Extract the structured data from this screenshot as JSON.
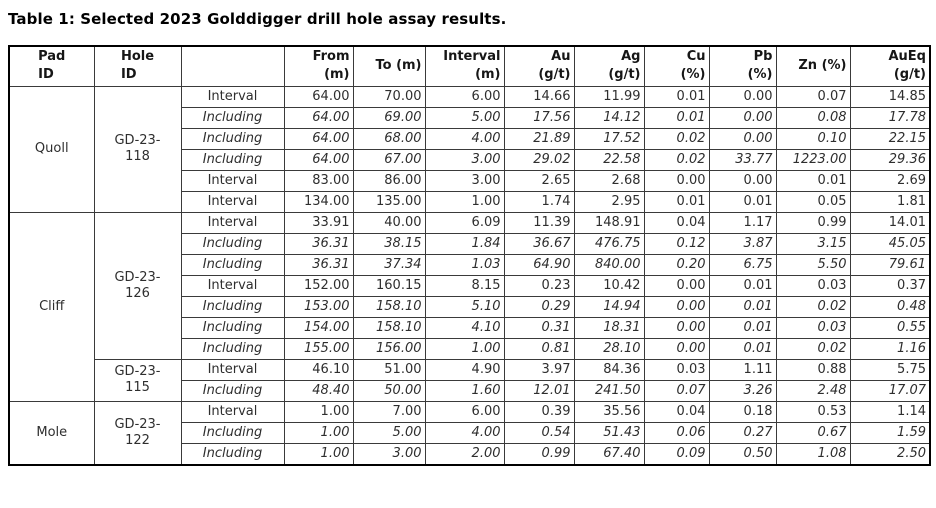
{
  "title": "Table 1: Selected 2023 Golddigger drill hole assay results.",
  "columns": [
    "Pad\nID",
    "Hole\nID",
    "",
    "From\n(m)",
    "To (m)",
    "Interval\n(m)",
    "Au\n(g/t)",
    "Ag\n(g/t)",
    "Cu\n(%)",
    "Pb\n(%)",
    "Zn (%)",
    "AuEq\n(g/t)"
  ],
  "colors": {
    "border": "#000000",
    "grid": "#3a3a3a",
    "text": "#2e2e2e",
    "background": "#ffffff"
  },
  "groups": [
    {
      "pad": "Quoll",
      "holes": [
        {
          "id": "GD-23-118",
          "rows": [
            {
              "type": "Interval",
              "values": [
                "64.00",
                "70.00",
                "6.00",
                "14.66",
                "11.99",
                "0.01",
                "0.00",
                "0.07",
                "14.85"
              ]
            },
            {
              "type": "Including",
              "values": [
                "64.00",
                "69.00",
                "5.00",
                "17.56",
                "14.12",
                "0.01",
                "0.00",
                "0.08",
                "17.78"
              ]
            },
            {
              "type": "Including",
              "values": [
                "64.00",
                "68.00",
                "4.00",
                "21.89",
                "17.52",
                "0.02",
                "0.00",
                "0.10",
                "22.15"
              ]
            },
            {
              "type": "Including",
              "values": [
                "64.00",
                "67.00",
                "3.00",
                "29.02",
                "22.58",
                "0.02",
                "33.77",
                "1223.00",
                "29.36"
              ]
            },
            {
              "type": "Interval",
              "values": [
                "83.00",
                "86.00",
                "3.00",
                "2.65",
                "2.68",
                "0.00",
                "0.00",
                "0.01",
                "2.69"
              ]
            },
            {
              "type": "Interval",
              "values": [
                "134.00",
                "135.00",
                "1.00",
                "1.74",
                "2.95",
                "0.01",
                "0.01",
                "0.05",
                "1.81"
              ]
            }
          ]
        }
      ]
    },
    {
      "pad": "Cliff",
      "holes": [
        {
          "id": "GD-23-126",
          "rows": [
            {
              "type": "Interval",
              "values": [
                "33.91",
                "40.00",
                "6.09",
                "11.39",
                "148.91",
                "0.04",
                "1.17",
                "0.99",
                "14.01"
              ]
            },
            {
              "type": "Including",
              "values": [
                "36.31",
                "38.15",
                "1.84",
                "36.67",
                "476.75",
                "0.12",
                "3.87",
                "3.15",
                "45.05"
              ]
            },
            {
              "type": "Including",
              "values": [
                "36.31",
                "37.34",
                "1.03",
                "64.90",
                "840.00",
                "0.20",
                "6.75",
                "5.50",
                "79.61"
              ]
            },
            {
              "type": "Interval",
              "values": [
                "152.00",
                "160.15",
                "8.15",
                "0.23",
                "10.42",
                "0.00",
                "0.01",
                "0.03",
                "0.37"
              ]
            },
            {
              "type": "Including",
              "values": [
                "153.00",
                "158.10",
                "5.10",
                "0.29",
                "14.94",
                "0.00",
                "0.01",
                "0.02",
                "0.48"
              ]
            },
            {
              "type": "Including",
              "values": [
                "154.00",
                "158.10",
                "4.10",
                "0.31",
                "18.31",
                "0.00",
                "0.01",
                "0.03",
                "0.55"
              ]
            },
            {
              "type": "Including",
              "values": [
                "155.00",
                "156.00",
                "1.00",
                "0.81",
                "28.10",
                "0.00",
                "0.01",
                "0.02",
                "1.16"
              ]
            }
          ]
        },
        {
          "id": "GD-23-115",
          "rows": [
            {
              "type": "Interval",
              "values": [
                "46.10",
                "51.00",
                "4.90",
                "3.97",
                "84.36",
                "0.03",
                "1.11",
                "0.88",
                "5.75"
              ]
            },
            {
              "type": "Including",
              "values": [
                "48.40",
                "50.00",
                "1.60",
                "12.01",
                "241.50",
                "0.07",
                "3.26",
                "2.48",
                "17.07"
              ]
            }
          ]
        }
      ]
    },
    {
      "pad": "Mole",
      "holes": [
        {
          "id": "GD-23-122",
          "rows": [
            {
              "type": "Interval",
              "values": [
                "1.00",
                "7.00",
                "6.00",
                "0.39",
                "35.56",
                "0.04",
                "0.18",
                "0.53",
                "1.14"
              ]
            },
            {
              "type": "Including",
              "values": [
                "1.00",
                "5.00",
                "4.00",
                "0.54",
                "51.43",
                "0.06",
                "0.27",
                "0.67",
                "1.59"
              ]
            },
            {
              "type": "Including",
              "values": [
                "1.00",
                "3.00",
                "2.00",
                "0.99",
                "67.40",
                "0.09",
                "0.50",
                "1.08",
                "2.50"
              ]
            }
          ]
        }
      ]
    }
  ]
}
